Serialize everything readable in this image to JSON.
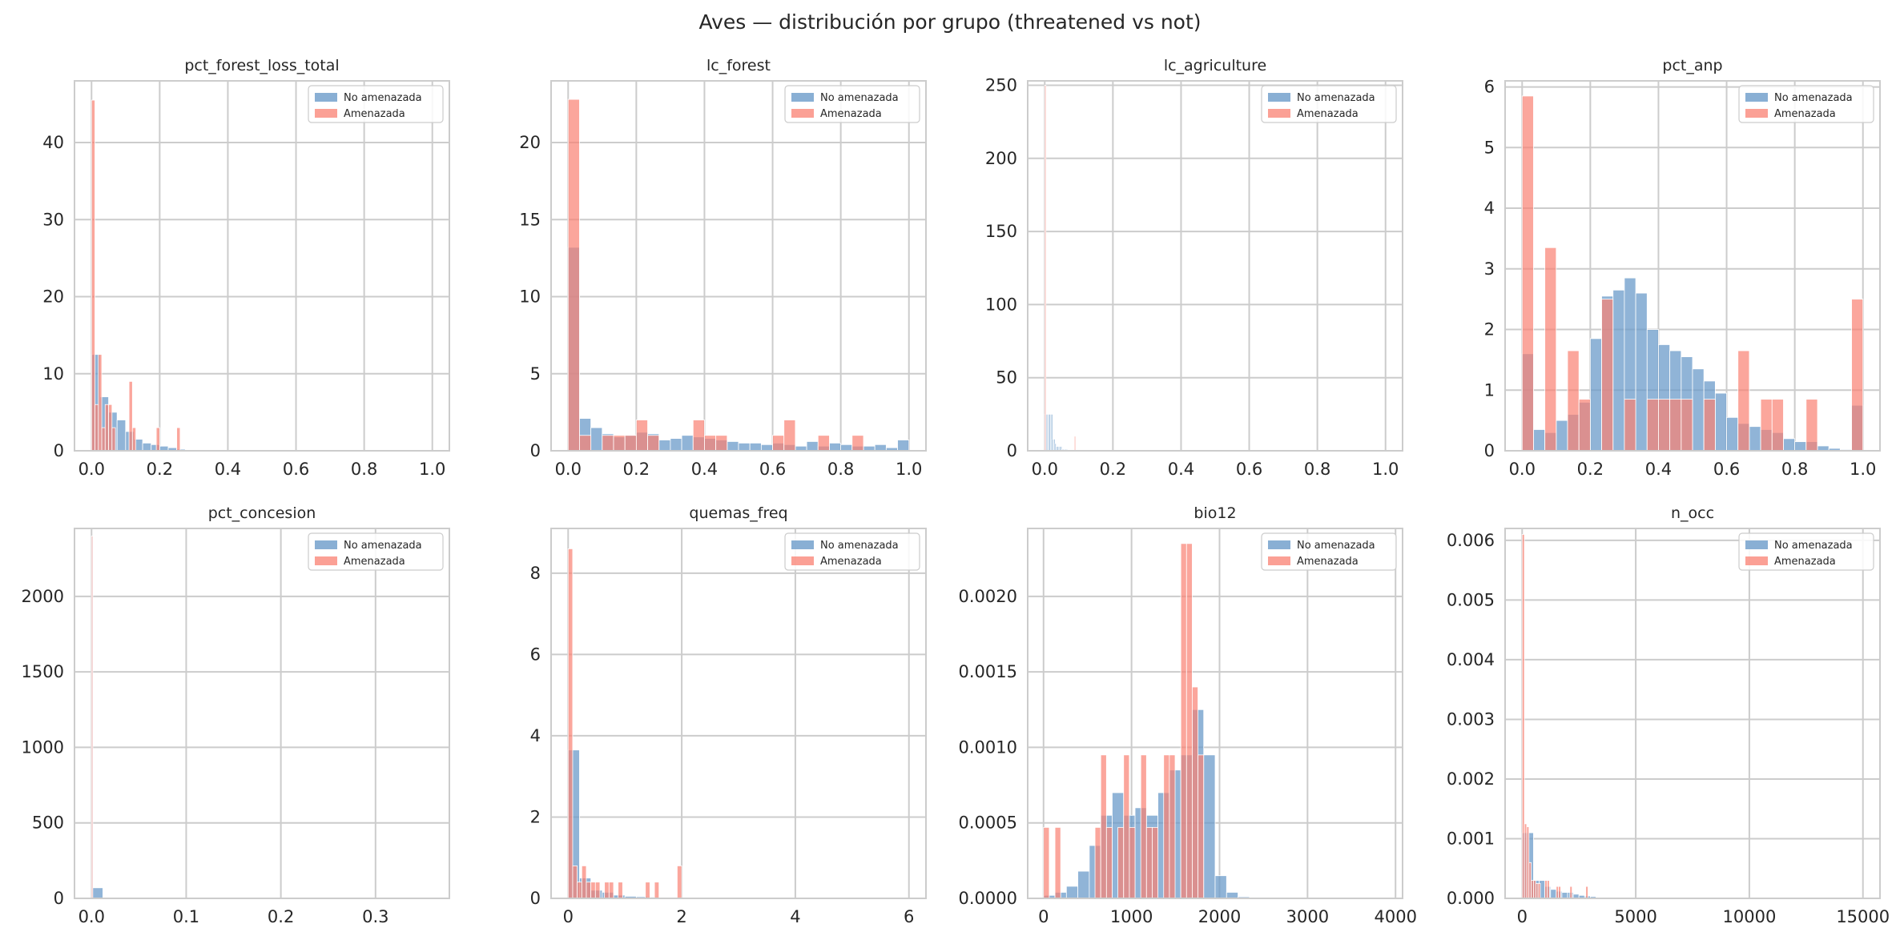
{
  "figure": {
    "title": "Aves — distribución por grupo (threatened vs not)"
  },
  "colors": {
    "not_threatened": "#6b9bc9",
    "threatened": "#fa8072",
    "overlap": "#c98888"
  },
  "chart_data": [
    {
      "type": "bar",
      "title": "pct_forest_loss_total",
      "xlim": [
        -0.05,
        1.05
      ],
      "ylim": [
        0,
        48
      ],
      "xticks": [
        0,
        0.2,
        0.4,
        0.6,
        0.8,
        1.0
      ],
      "xtick_labels": [
        "0.0",
        "0.2",
        "0.4",
        "0.6",
        "0.8",
        "1.0"
      ],
      "yticks": [
        0,
        10,
        20,
        30,
        40
      ],
      "ytick_labels": [
        "0",
        "10",
        "20",
        "30",
        "40"
      ],
      "legend": [
        "No amenazada",
        "Amenazada"
      ],
      "series": [
        {
          "name": "No amenazada",
          "bin_edges": [
            0,
            0.025,
            0.05,
            0.075,
            0.1,
            0.125,
            0.15,
            0.175,
            0.2,
            0.225,
            0.25,
            0.275
          ],
          "values": [
            12.5,
            7,
            5,
            4,
            2.5,
            1.5,
            1,
            0.8,
            0.6,
            0.4,
            0.2
          ]
        },
        {
          "name": "Amenazada",
          "bin_edges": [
            0,
            0.01,
            0.02,
            0.03,
            0.04,
            0.05,
            0.06,
            0.07,
            0.08,
            0.09,
            0.1,
            0.11,
            0.12,
            0.13,
            0.14,
            0.15,
            0.16,
            0.17,
            0.18,
            0.19,
            0.2,
            0.21,
            0.22,
            0.23,
            0.24,
            0.25,
            0.26,
            0.27
          ],
          "values": [
            45.5,
            6,
            12.5,
            3,
            6,
            6,
            3,
            0,
            0,
            0,
            0,
            9,
            3,
            0,
            0,
            0,
            0,
            0,
            0,
            3,
            0,
            0,
            0,
            0,
            0,
            3,
            0
          ]
        }
      ]
    },
    {
      "type": "bar",
      "title": "lc_forest",
      "xlim": [
        -0.05,
        1.05
      ],
      "ylim": [
        0,
        24
      ],
      "xticks": [
        0,
        0.2,
        0.4,
        0.6,
        0.8,
        1.0
      ],
      "xtick_labels": [
        "0.0",
        "0.2",
        "0.4",
        "0.6",
        "0.8",
        "1.0"
      ],
      "yticks": [
        0,
        5,
        10,
        15,
        20
      ],
      "ytick_labels": [
        "0",
        "5",
        "10",
        "15",
        "20"
      ],
      "legend": [
        "No amenazada",
        "Amenazada"
      ],
      "series": [
        {
          "name": "No amenazada",
          "bin_edges": [
            0,
            0.0333,
            0.0667,
            0.1,
            0.1333,
            0.1667,
            0.2,
            0.2333,
            0.2667,
            0.3,
            0.3333,
            0.3667,
            0.4,
            0.4333,
            0.4667,
            0.5,
            0.5333,
            0.5667,
            0.6,
            0.6333,
            0.6667,
            0.7,
            0.7333,
            0.7667,
            0.8,
            0.8333,
            0.8667,
            0.9,
            0.9333,
            0.9667,
            1.0
          ],
          "values": [
            13.2,
            2.1,
            1.5,
            1.1,
            0.9,
            1.0,
            1.2,
            1.1,
            0.7,
            0.8,
            1.0,
            0.9,
            0.8,
            0.7,
            0.6,
            0.5,
            0.5,
            0.4,
            0.5,
            0.4,
            0.3,
            0.6,
            0.3,
            0.5,
            0.4,
            0.3,
            0.3,
            0.4,
            0.2,
            0.7
          ]
        },
        {
          "name": "Amenazada",
          "bin_edges": [
            0,
            0.0333,
            0.0667,
            0.1,
            0.1333,
            0.1667,
            0.2,
            0.2333,
            0.2667,
            0.3,
            0.3333,
            0.3667,
            0.4,
            0.4333,
            0.4667,
            0.5,
            0.5333,
            0.5667,
            0.6,
            0.6333,
            0.6667,
            0.7,
            0.7333,
            0.7667,
            0.8,
            0.8333,
            0.8667,
            0.9,
            0.9333,
            0.9667,
            1.0
          ],
          "values": [
            22.8,
            1.0,
            0,
            1.0,
            1.0,
            1.0,
            2.0,
            1.0,
            0,
            0,
            0,
            2.0,
            1.0,
            1.0,
            0,
            0,
            0,
            0,
            1.0,
            2.0,
            0,
            0,
            1.0,
            0,
            0,
            1.0,
            0,
            0,
            0,
            0
          ]
        }
      ]
    },
    {
      "type": "bar",
      "title": "lc_agriculture",
      "xlim": [
        -0.05,
        1.05
      ],
      "ylim": [
        0,
        253
      ],
      "xticks": [
        0,
        0.2,
        0.4,
        0.6,
        0.8,
        1.0
      ],
      "xtick_labels": [
        "0.0",
        "0.2",
        "0.4",
        "0.6",
        "0.8",
        "1.0"
      ],
      "yticks": [
        0,
        50,
        100,
        150,
        200,
        250
      ],
      "ytick_labels": [
        "0",
        "50",
        "100",
        "150",
        "200",
        "250"
      ],
      "legend": [
        "No amenazada",
        "Amenazada"
      ],
      "series": [
        {
          "name": "No amenazada",
          "bin_edges": [
            0,
            0.0033,
            0.0067,
            0.01,
            0.0133,
            0.0167,
            0.02,
            0.0233,
            0.0267,
            0.03,
            0.0333,
            0.0367,
            0.04,
            0.0433,
            0.0467,
            0.05,
            0.0533,
            0.0567,
            0.06,
            0.0633,
            0.0667
          ],
          "values": [
            25,
            25,
            25,
            25,
            25,
            25,
            25,
            8,
            8,
            5,
            3,
            3,
            3,
            3,
            3,
            1,
            1,
            1,
            1,
            1
          ]
        },
        {
          "name": "Amenazada",
          "bin_edges": [
            0,
            0.003,
            0.006,
            0.009,
            0.012,
            0.015,
            0.018,
            0.021,
            0.024,
            0.027,
            0.03,
            0.033,
            0.036,
            0.039,
            0.042,
            0.045,
            0.048,
            0.051,
            0.054,
            0.057,
            0.06,
            0.063,
            0.066,
            0.069,
            0.072,
            0.075,
            0.078,
            0.081,
            0.084,
            0.087,
            0.09
          ],
          "values": [
            250,
            0,
            0,
            0,
            0,
            0,
            0,
            0,
            0,
            0,
            0,
            0,
            0,
            0,
            0,
            0,
            0,
            0,
            0,
            0,
            0,
            0,
            0,
            0,
            0,
            0,
            0,
            0,
            0,
            10
          ]
        }
      ]
    },
    {
      "type": "bar",
      "title": "pct_anp",
      "xlim": [
        -0.05,
        1.05
      ],
      "ylim": [
        0,
        6.1
      ],
      "xticks": [
        0,
        0.2,
        0.4,
        0.6,
        0.8,
        1.0
      ],
      "xtick_labels": [
        "0.0",
        "0.2",
        "0.4",
        "0.6",
        "0.8",
        "1.0"
      ],
      "yticks": [
        0,
        1,
        2,
        3,
        4,
        5,
        6
      ],
      "ytick_labels": [
        "0",
        "1",
        "2",
        "3",
        "4",
        "5",
        "6"
      ],
      "legend": [
        "No amenazada",
        "Amenazada"
      ],
      "series": [
        {
          "name": "No amenazada",
          "bin_edges": [
            0,
            0.0333,
            0.0667,
            0.1,
            0.1333,
            0.1667,
            0.2,
            0.2333,
            0.2667,
            0.3,
            0.3333,
            0.3667,
            0.4,
            0.4333,
            0.4667,
            0.5,
            0.5333,
            0.5667,
            0.6,
            0.6333,
            0.6667,
            0.7,
            0.7333,
            0.7667,
            0.8,
            0.8333,
            0.8667,
            0.9,
            0.9333,
            0.9667,
            1.0
          ],
          "values": [
            1.6,
            0.35,
            0.3,
            0.5,
            0.6,
            0.8,
            1.85,
            2.55,
            2.65,
            2.85,
            2.6,
            2.0,
            1.75,
            1.65,
            1.55,
            1.35,
            1.15,
            0.95,
            0.55,
            0.45,
            0.4,
            0.35,
            0.3,
            0.2,
            0.15,
            0.15,
            0.08,
            0.04,
            0.02,
            0.75
          ]
        },
        {
          "name": "Amenazada",
          "bin_edges": [
            0,
            0.0333,
            0.0667,
            0.1,
            0.1333,
            0.1667,
            0.2,
            0.2333,
            0.2667,
            0.3,
            0.3333,
            0.3667,
            0.4,
            0.4333,
            0.4667,
            0.5,
            0.5333,
            0.5667,
            0.6,
            0.6333,
            0.6667,
            0.7,
            0.7333,
            0.7667,
            0.8,
            0.8333,
            0.8667,
            0.9,
            0.9333,
            0.9667,
            1.0
          ],
          "values": [
            5.85,
            0,
            3.35,
            0,
            1.65,
            0.85,
            0,
            2.5,
            0,
            0.85,
            0,
            0.85,
            0.85,
            0.85,
            0.85,
            0,
            0.85,
            0,
            0,
            1.65,
            0,
            0.85,
            0.85,
            0,
            0,
            0.85,
            0,
            0,
            0,
            2.5
          ]
        }
      ]
    },
    {
      "type": "bar",
      "title": "pct_concesion",
      "xlim": [
        -0.018,
        0.378
      ],
      "ylim": [
        0,
        2450
      ],
      "xticks": [
        0,
        0.1,
        0.2,
        0.3
      ],
      "xtick_labels": [
        "0.0",
        "0.1",
        "0.2",
        "0.3"
      ],
      "yticks": [
        0,
        500,
        1000,
        1500,
        2000
      ],
      "ytick_labels": [
        "0",
        "500",
        "1000",
        "1500",
        "2000"
      ],
      "legend": [
        "No amenazada",
        "Amenazada"
      ],
      "series": [
        {
          "name": "No amenazada",
          "bin_edges": [
            0,
            0.0012,
            0.012
          ],
          "values": [
            2400,
            70
          ]
        },
        {
          "name": "Amenazada",
          "bin_edges": [
            0,
            0.0006
          ],
          "values": [
            2400
          ]
        }
      ]
    },
    {
      "type": "bar",
      "title": "quemas_freq",
      "xlim": [
        -0.3,
        6.3
      ],
      "ylim": [
        0,
        9.1
      ],
      "xticks": [
        0,
        2,
        4,
        6
      ],
      "xtick_labels": [
        "0",
        "2",
        "4",
        "6"
      ],
      "yticks": [
        0,
        2,
        4,
        6,
        8
      ],
      "ytick_labels": [
        "0",
        "2",
        "4",
        "6",
        "8"
      ],
      "legend": [
        "No amenazada",
        "Amenazada"
      ],
      "series": [
        {
          "name": "No amenazada",
          "bin_edges": [
            0,
            0.2,
            0.4,
            0.6,
            0.8,
            1.0,
            1.2,
            1.4,
            1.6,
            1.8,
            2.0,
            2.2
          ],
          "values": [
            3.65,
            0.5,
            0.2,
            0.15,
            0.08,
            0.05,
            0.04,
            0.03,
            0.02,
            0.02,
            0.01
          ]
        },
        {
          "name": "Amenazada",
          "bin_edges": [
            0,
            0.08,
            0.16,
            0.24,
            0.32,
            0.4,
            0.48,
            0.56,
            0.64,
            0.72,
            0.8,
            0.88,
            0.96,
            1.04,
            1.12,
            1.2,
            1.28,
            1.36,
            1.44,
            1.52,
            1.6,
            1.68,
            1.76,
            1.84,
            1.92,
            2.0,
            2.08
          ],
          "values": [
            8.6,
            0.8,
            0.4,
            0.8,
            0.4,
            0.4,
            0.4,
            0,
            0.4,
            0.4,
            0,
            0.4,
            0,
            0,
            0,
            0,
            0,
            0.4,
            0,
            0.4,
            0,
            0,
            0,
            0,
            0.8,
            0
          ]
        }
      ]
    },
    {
      "type": "bar",
      "title": "bio12",
      "xlim": [
        -180,
        4080
      ],
      "ylim": [
        0,
        0.00245
      ],
      "xticks": [
        0,
        1000,
        2000,
        3000,
        4000
      ],
      "xtick_labels": [
        "0",
        "1000",
        "2000",
        "3000",
        "4000"
      ],
      "yticks": [
        0,
        0.0005,
        0.001,
        0.0015,
        0.002
      ],
      "ytick_labels": [
        "0.0000",
        "0.0005",
        "0.0010",
        "0.0015",
        "0.0020"
      ],
      "legend": [
        "No amenazada",
        "Amenazada"
      ],
      "series": [
        {
          "name": "No amenazada",
          "bin_edges": [
            0,
            130,
            260,
            390,
            520,
            650,
            780,
            910,
            1040,
            1170,
            1300,
            1430,
            1560,
            1690,
            1820,
            1950,
            2080,
            2210,
            2340
          ],
          "values": [
            2e-05,
            4e-05,
            8e-05,
            0.00018,
            0.00035,
            0.00055,
            0.0007,
            0.00055,
            0.0006,
            0.00055,
            0.0007,
            0.00085,
            0.00095,
            0.00125,
            0.00095,
            0.00015,
            4e-05,
            1e-05
          ]
        },
        {
          "name": "Amenazada",
          "bin_edges": [
            0,
            65,
            130,
            195,
            260,
            325,
            390,
            455,
            520,
            585,
            650,
            715,
            780,
            845,
            910,
            975,
            1040,
            1105,
            1170,
            1235,
            1300,
            1365,
            1430,
            1495,
            1560,
            1625,
            1690,
            1755,
            1820,
            1885
          ],
          "values": [
            0.00047,
            0,
            0.00047,
            0,
            0,
            0,
            0,
            0,
            0,
            0.00047,
            0.00095,
            0.00047,
            0,
            0.00047,
            0.00095,
            0.00047,
            0,
            0.00095,
            0.00047,
            0.00047,
            0,
            0.00095,
            0.00095,
            0,
            0.00235,
            0.00235,
            0.0014,
            0.00095,
            0
          ]
        }
      ]
    },
    {
      "type": "bar",
      "title": "n_occ",
      "xlim": [
        -750,
        15750
      ],
      "ylim": [
        0,
        0.0062
      ],
      "xticks": [
        0,
        5000,
        10000,
        15000
      ],
      "xtick_labels": [
        "0",
        "5000",
        "10000",
        "15000"
      ],
      "yticks": [
        0,
        0.001,
        0.002,
        0.003,
        0.004,
        0.005,
        0.006
      ],
      "ytick_labels": [
        "0.000",
        "0.001",
        "0.002",
        "0.003",
        "0.004",
        "0.005",
        "0.006"
      ],
      "legend": [
        "No amenazada",
        "Amenazada"
      ],
      "series": [
        {
          "name": "No amenazada",
          "bin_edges": [
            0,
            250,
            500,
            750,
            1000,
            1250,
            1500,
            1750,
            2000,
            2250,
            2500,
            2750,
            3000,
            3250
          ],
          "values": [
            0.0011,
            0.0011,
            0.0003,
            0.0003,
            0.0002,
            0.00015,
            0.00012,
            0.0001,
            0.0001,
            7e-05,
            5e-05,
            4e-05,
            3e-05
          ]
        },
        {
          "name": "Amenazada",
          "bin_edges": [
            0,
            100,
            200,
            300,
            400,
            500,
            600,
            700,
            800,
            900,
            1000,
            1100,
            1200,
            1300,
            1400,
            1500,
            1600,
            1700,
            1800,
            1900,
            2000,
            2100,
            2200,
            2300,
            2400,
            2500,
            2600,
            2700,
            2800,
            2900,
            3000
          ],
          "values": [
            0.0061,
            0.00125,
            0.0012,
            0.0006,
            0.0003,
            0.0003,
            0.00025,
            0.00025,
            0,
            0,
            0.0003,
            0.0003,
            0,
            0,
            0,
            0.0002,
            0.0002,
            0,
            0,
            0,
            0,
            0.0002,
            0,
            0,
            0,
            0,
            0,
            0,
            0.0002,
            0
          ]
        }
      ]
    }
  ]
}
